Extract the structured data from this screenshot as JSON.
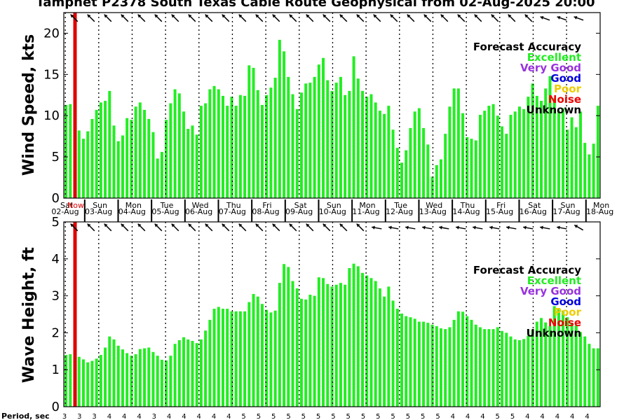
{
  "title": "Tamphet P2378 South Texas Cable Route Geophysical from 02-Aug-2025 20:00",
  "colors": {
    "excellent": "#22ee22",
    "very_good": "#9933dd",
    "good": "#0000dd",
    "poor": "#eecc00",
    "noise": "#ee0000",
    "unknown": "#000000",
    "now_line": "#dd0000"
  },
  "legend": {
    "title": "Forecast Accuracy",
    "items": [
      {
        "label": "Excellent",
        "color": "#22ee22"
      },
      {
        "label": "Very Good",
        "color": "#9933dd"
      },
      {
        "label": "Good",
        "color": "#0000dd"
      },
      {
        "label": "Poor",
        "color": "#eecc00"
      },
      {
        "label": "Noise",
        "color": "#ee0000"
      },
      {
        "label": "Unknown",
        "color": "#000000"
      }
    ]
  },
  "now_label": "Now",
  "period_label": "Period, sec",
  "days": [
    {
      "day": "Sat",
      "date": "02-Aug"
    },
    {
      "day": "Sun",
      "date": "03-Aug"
    },
    {
      "day": "Mon",
      "date": "04-Aug"
    },
    {
      "day": "Tue",
      "date": "05-Aug"
    },
    {
      "day": "Wed",
      "date": "06-Aug"
    },
    {
      "day": "Thu",
      "date": "07-Aug"
    },
    {
      "day": "Fri",
      "date": "08-Aug"
    },
    {
      "day": "Sat",
      "date": "09-Aug"
    },
    {
      "day": "Sun",
      "date": "10-Aug"
    },
    {
      "day": "Mon",
      "date": "11-Aug"
    },
    {
      "day": "Tue",
      "date": "12-Aug"
    },
    {
      "day": "Wed",
      "date": "13-Aug"
    },
    {
      "day": "Thu",
      "date": "14-Aug"
    },
    {
      "day": "Fri",
      "date": "15-Aug"
    },
    {
      "day": "Sat",
      "date": "16-Aug"
    },
    {
      "day": "Sun",
      "date": "17-Aug"
    },
    {
      "day": "Mon",
      "date": "18-Aug"
    }
  ],
  "periods": [
    "3",
    "3",
    "3",
    "4",
    "4",
    "4",
    "3",
    "4",
    "4",
    "4",
    "4",
    "4",
    "5",
    "5",
    "5",
    "5",
    "5",
    "5",
    "5",
    "5",
    "5",
    "5",
    "5",
    "5",
    "5",
    "5",
    "4",
    "4",
    "4",
    "5",
    "5",
    "4",
    "4",
    "4",
    "4",
    "4",
    "4"
  ],
  "chart_data": [
    {
      "type": "bar",
      "ylabel": "Wind Speed, kts",
      "ylim": [
        0,
        22.5
      ],
      "yticks": [
        0,
        5,
        10,
        15,
        20
      ],
      "grid": false,
      "values": [
        11.3,
        11.4,
        9.3,
        8.2,
        7.2,
        8.1,
        9.6,
        10.7,
        11.6,
        11.8,
        13,
        8.8,
        6.9,
        7.6,
        9.7,
        9.5,
        11.1,
        11.6,
        10.7,
        9.6,
        8,
        4.8,
        5.6,
        9.5,
        11.5,
        13.2,
        12.7,
        10.5,
        8.4,
        8.8,
        7.7,
        11.2,
        11.5,
        13.2,
        13.6,
        13.2,
        12.4,
        11.2,
        12.3,
        11.2,
        12.5,
        12.4,
        16.1,
        15.8,
        13.1,
        11.3,
        12.5,
        13.4,
        14.6,
        19.2,
        17.8,
        14.7,
        12.6,
        10.8,
        12.8,
        13.9,
        14,
        14.7,
        16.2,
        17,
        14.3,
        13,
        14,
        14.7,
        12.5,
        13,
        17.2,
        14.5,
        13,
        12.3,
        12.6,
        11.6,
        10.6,
        10.2,
        11.2,
        8.3,
        6.1,
        4.3,
        5.8,
        8.5,
        10.5,
        10.9,
        8.5,
        6.5,
        2.6,
        4,
        4.7,
        7.8,
        11.1,
        13.3,
        13.3,
        10.3,
        7.4,
        7.2,
        7.0,
        10.1,
        10.6,
        11.2,
        11.4,
        10,
        8.7,
        7.8,
        10.1,
        10.5,
        11.1,
        10.8,
        12.3,
        13.9,
        12.4,
        11.8,
        13.3,
        14.8,
        12.1,
        10.6,
        10.9,
        8.3,
        9.8,
        8.6,
        10.5,
        6.7,
        5.3,
        6.6,
        11.2
      ],
      "accuracy": "Excellent",
      "series_colors_note": "bars colored by forecast accuracy"
    },
    {
      "type": "bar",
      "ylabel": "Wave Height, ft",
      "ylim": [
        0,
        5
      ],
      "yticks": [
        0,
        1,
        2,
        3,
        4,
        5
      ],
      "grid": false,
      "values": [
        1.4,
        1.42,
        1.4,
        1.35,
        1.28,
        1.2,
        1.24,
        1.3,
        1.4,
        1.6,
        1.9,
        1.82,
        1.65,
        1.55,
        1.45,
        1.38,
        1.42,
        1.56,
        1.58,
        1.6,
        1.48,
        1.38,
        1.27,
        1.25,
        1.38,
        1.7,
        1.8,
        1.88,
        1.82,
        1.78,
        1.72,
        1.82,
        2.06,
        2.35,
        2.65,
        2.7,
        2.65,
        2.65,
        2.58,
        2.58,
        2.58,
        2.58,
        2.83,
        3.05,
        2.98,
        2.78,
        2.62,
        2.55,
        2.6,
        3.35,
        3.86,
        3.78,
        3.4,
        3.2,
        2.92,
        2.9,
        3.03,
        3,
        3.5,
        3.48,
        3.32,
        3.25,
        3.3,
        3.35,
        3.3,
        3.75,
        3.87,
        3.8,
        3.62,
        3.55,
        3.48,
        3.4,
        3.2,
        2.98,
        3.25,
        2.87,
        2.65,
        2.52,
        2.45,
        2.42,
        2.38,
        2.3,
        2.3,
        2.27,
        2.22,
        2.18,
        2.12,
        2.1,
        2.15,
        2.35,
        2.58,
        2.57,
        2.45,
        2.35,
        2.22,
        2.15,
        2.1,
        2.1,
        2.1,
        2.15,
        2.05,
        2.0,
        1.9,
        1.82,
        1.8,
        1.83,
        1.92,
        2.08,
        2.3,
        2.4,
        2.28,
        2.18,
        2.72,
        2.67,
        2.6,
        2.42,
        2.27,
        2.2,
        2.02,
        1.9,
        1.7,
        1.58,
        1.58
      ],
      "accuracy": "Excellent"
    }
  ]
}
